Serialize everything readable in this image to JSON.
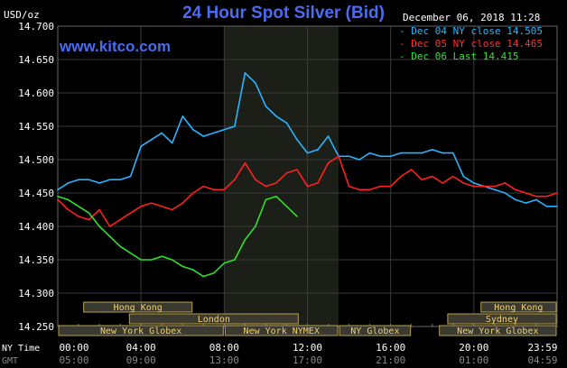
{
  "header": {
    "title": "24 Hour Spot Silver (Bid)",
    "y_unit": "USD/oz",
    "timestamp": "December 06, 2018 11:28",
    "site": "www.kitco.com"
  },
  "colors": {
    "background": "#000000",
    "grid": "#3a3a3a",
    "axis_text": "#ffffff",
    "session_highlight": "#1c1f18",
    "market_bar_fill": "#3a3a30",
    "market_bar_text": "#f0d070"
  },
  "chart_data": {
    "type": "line",
    "title": "24 Hour Spot Silver (Bid)",
    "ylabel": "USD/oz",
    "xlabel": "",
    "ylim": [
      14.25,
      14.7
    ],
    "y_ticks": [
      "14.700",
      "14.650",
      "14.600",
      "14.550",
      "14.500",
      "14.450",
      "14.400",
      "14.350",
      "14.300",
      "14.250"
    ],
    "x_ticks_ny": [
      "00:00",
      "04:00",
      "08:00",
      "12:00",
      "16:00",
      "20:00",
      "23:59"
    ],
    "x_ticks_gmt": [
      "05:00",
      "09:00",
      "13:00",
      "17:00",
      "21:00",
      "01:00",
      "04:59"
    ],
    "x_row_labels": [
      "NY Time",
      "GMT"
    ],
    "grid": true,
    "legend_position": "top-right",
    "series": [
      {
        "name": "Dec 04 NY close 14.505",
        "color": "#2ab4ff",
        "x": [
          0,
          0.5,
          1,
          1.5,
          2,
          2.5,
          3,
          3.5,
          4,
          4.5,
          5,
          5.5,
          6,
          6.5,
          7,
          7.5,
          8,
          8.5,
          9,
          9.5,
          10,
          10.5,
          11,
          11.5,
          12,
          12.5,
          13,
          13.5,
          14,
          14.5,
          15,
          15.5,
          16,
          16.5,
          17,
          17.5,
          18,
          18.5,
          19,
          19.5,
          20,
          20.5,
          21,
          21.5,
          22,
          22.5,
          23,
          23.5,
          24
        ],
        "values": [
          14.455,
          14.465,
          14.47,
          14.47,
          14.465,
          14.47,
          14.47,
          14.475,
          14.52,
          14.53,
          14.54,
          14.525,
          14.565,
          14.545,
          14.535,
          14.54,
          14.545,
          14.55,
          14.63,
          14.615,
          14.58,
          14.565,
          14.555,
          14.53,
          14.51,
          14.515,
          14.535,
          14.505,
          14.505,
          14.5,
          14.51,
          14.505,
          14.505,
          14.51,
          14.51,
          14.51,
          14.515,
          14.51,
          14.51,
          14.475,
          14.465,
          14.46,
          14.455,
          14.45,
          14.44,
          14.435,
          14.44,
          14.43,
          14.43
        ]
      },
      {
        "name": "Dec 05 NY close 14.465",
        "color": "#ff2020",
        "x": [
          0,
          0.5,
          1,
          1.5,
          2,
          2.5,
          3,
          3.5,
          4,
          4.5,
          5,
          5.5,
          6,
          6.5,
          7,
          7.5,
          8,
          8.5,
          9,
          9.5,
          10,
          10.5,
          11,
          11.5,
          12,
          12.5,
          13,
          13.5,
          14,
          14.5,
          15,
          15.5,
          16,
          16.5,
          17,
          17.5,
          18,
          18.5,
          19,
          19.5,
          20,
          20.5,
          21,
          21.5,
          22,
          22.5,
          23,
          23.5,
          24
        ],
        "values": [
          14.44,
          14.425,
          14.415,
          14.41,
          14.425,
          14.4,
          14.41,
          14.42,
          14.43,
          14.435,
          14.43,
          14.425,
          14.435,
          14.45,
          14.46,
          14.455,
          14.455,
          14.47,
          14.495,
          14.47,
          14.46,
          14.465,
          14.48,
          14.485,
          14.46,
          14.465,
          14.495,
          14.505,
          14.46,
          14.455,
          14.455,
          14.46,
          14.46,
          14.475,
          14.485,
          14.47,
          14.475,
          14.465,
          14.475,
          14.465,
          14.46,
          14.46,
          14.46,
          14.465,
          14.455,
          14.45,
          14.445,
          14.445,
          14.45
        ]
      },
      {
        "name": "Dec 06 Last 14.415",
        "color": "#30e030",
        "x": [
          0,
          0.5,
          1,
          1.5,
          2,
          2.5,
          3,
          3.5,
          4,
          4.5,
          5,
          5.5,
          6,
          6.5,
          7,
          7.5,
          8,
          8.5,
          9,
          9.5,
          10,
          10.5,
          11,
          11.5
        ],
        "values": [
          14.445,
          14.44,
          14.43,
          14.42,
          14.4,
          14.385,
          14.37,
          14.36,
          14.35,
          14.35,
          14.355,
          14.35,
          14.34,
          14.335,
          14.325,
          14.33,
          14.345,
          14.35,
          14.38,
          14.4,
          14.44,
          14.445,
          14.43,
          14.415
        ]
      }
    ],
    "markets_top_row": [
      {
        "label": "Hong Kong",
        "start": 1.2,
        "end": 6.5
      },
      {
        "label": "Hong Kong",
        "start": 20.3,
        "end": 24
      }
    ],
    "markets_mid_row": [
      {
        "label": "London",
        "start": 3.4,
        "end": 11.6
      },
      {
        "label": "Sydney",
        "start": 18.7,
        "end": 24
      }
    ],
    "markets_bottom_row": [
      {
        "label": "New York Globex",
        "start": 0,
        "end": 8
      },
      {
        "label": "New York NYMEX",
        "start": 8,
        "end": 13.5
      },
      {
        "label": "NY Globex",
        "start": 13.5,
        "end": 17
      },
      {
        "label": "New York Globex",
        "start": 18.3,
        "end": 24
      }
    ],
    "session_highlight": [
      8,
      13.5
    ]
  }
}
